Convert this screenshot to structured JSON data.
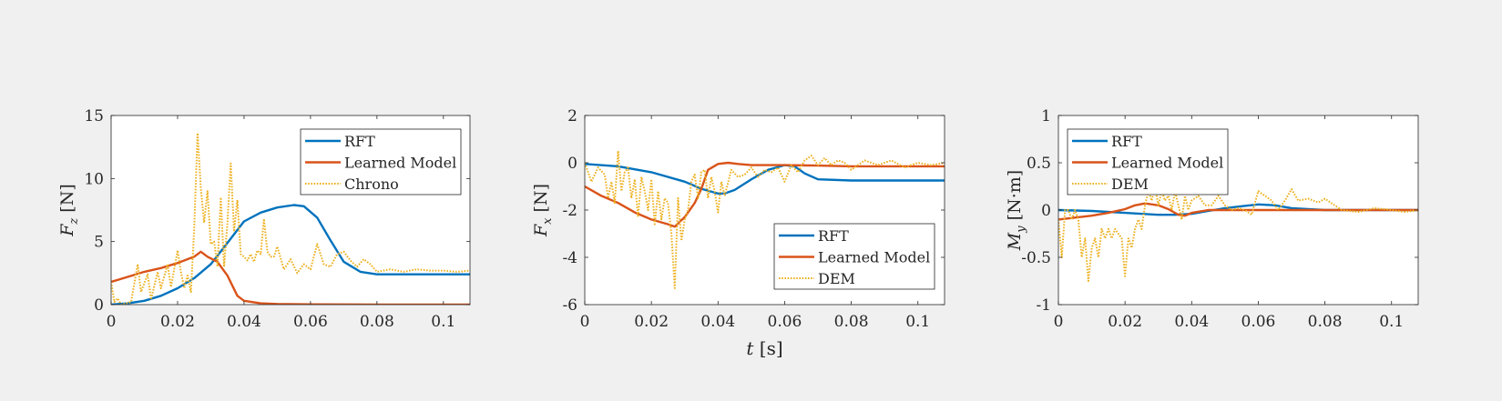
{
  "chart_data": [
    {
      "type": "line",
      "ylabel": "F_z [N]",
      "ylabel_parts": {
        "sym": "F",
        "sub": "z",
        "unit": " [N]"
      },
      "xlabel": "",
      "xlim": [
        0,
        0.108
      ],
      "ylim": [
        0,
        15
      ],
      "xticks": [
        0,
        0.02,
        0.04,
        0.06,
        0.08,
        0.1
      ],
      "xtick_labels": [
        "0",
        "0.02",
        "0.04",
        "0.06",
        "0.08",
        "0.1"
      ],
      "yticks": [
        0,
        5,
        10,
        15
      ],
      "ytick_labels": [
        "0",
        "5",
        "10",
        "15"
      ],
      "legend": "top-right",
      "series": [
        {
          "name": "RFT",
          "color": "#0072bd",
          "style": "solid",
          "x": [
            0,
            0.005,
            0.01,
            0.015,
            0.02,
            0.025,
            0.03,
            0.035,
            0.04,
            0.045,
            0.05,
            0.055,
            0.058,
            0.062,
            0.066,
            0.07,
            0.075,
            0.08,
            0.09,
            0.1,
            0.108
          ],
          "y": [
            0,
            0.1,
            0.3,
            0.7,
            1.3,
            2.1,
            3.2,
            4.9,
            6.6,
            7.3,
            7.7,
            7.9,
            7.8,
            6.9,
            5.1,
            3.4,
            2.6,
            2.4,
            2.4,
            2.4,
            2.4
          ]
        },
        {
          "name": "Learned Model",
          "color": "#d95319",
          "style": "solid",
          "x": [
            0,
            0.005,
            0.01,
            0.015,
            0.02,
            0.025,
            0.027,
            0.029,
            0.032,
            0.035,
            0.038,
            0.04,
            0.045,
            0.05,
            0.06,
            0.08,
            0.1,
            0.108
          ],
          "y": [
            1.8,
            2.2,
            2.6,
            2.9,
            3.3,
            3.8,
            4.2,
            3.8,
            3.4,
            2.3,
            0.7,
            0.3,
            0.1,
            0.05,
            0.02,
            0.01,
            0,
            0
          ],
          "y_label_note": ""
        },
        {
          "name": "Chrono",
          "color": "#edb120",
          "style": "dotted",
          "x": [
            0,
            0.001,
            0.002,
            0.003,
            0.006,
            0.008,
            0.009,
            0.011,
            0.012,
            0.014,
            0.015,
            0.017,
            0.018,
            0.02,
            0.021,
            0.022,
            0.023,
            0.024,
            0.025,
            0.026,
            0.027,
            0.028,
            0.029,
            0.03,
            0.031,
            0.032,
            0.033,
            0.034,
            0.035,
            0.036,
            0.037,
            0.038,
            0.039,
            0.04,
            0.041,
            0.042,
            0.043,
            0.044,
            0.045,
            0.046,
            0.047,
            0.048,
            0.049,
            0.05,
            0.052,
            0.054,
            0.056,
            0.058,
            0.06,
            0.062,
            0.064,
            0.066,
            0.068,
            0.07,
            0.072,
            0.074,
            0.076,
            0.078,
            0.08,
            0.084,
            0.088,
            0.092,
            0.096,
            0.1,
            0.104,
            0.108
          ],
          "y": [
            1.8,
            0.2,
            0.5,
            0,
            0.2,
            3.2,
            1.0,
            2.4,
            0.4,
            2.6,
            1.3,
            3.2,
            1.4,
            4.3,
            2.6,
            1.3,
            2.3,
            1.0,
            6.0,
            13.6,
            9.2,
            6.5,
            9.0,
            4.8,
            5.0,
            3.0,
            8.5,
            3.0,
            6.5,
            11.2,
            5.8,
            8.3,
            4.0,
            3.8,
            3.5,
            4.0,
            3.4,
            4.3,
            4.0,
            6.8,
            4.2,
            3.8,
            3.8,
            4.6,
            2.8,
            3.6,
            2.5,
            3.2,
            2.8,
            4.8,
            3.2,
            3.0,
            4.0,
            4.2,
            3.5,
            3.0,
            3.6,
            3.2,
            2.6,
            2.8,
            2.6,
            2.8,
            2.7,
            2.7,
            2.6,
            2.7
          ]
        }
      ]
    },
    {
      "type": "line",
      "ylabel": "F_x [N]",
      "ylabel_parts": {
        "sym": "F",
        "sub": "x",
        "unit": " [N]"
      },
      "xlabel": "t [s]",
      "xlim": [
        0,
        0.108
      ],
      "ylim": [
        -6,
        2
      ],
      "xticks": [
        0,
        0.02,
        0.04,
        0.06,
        0.08,
        0.1
      ],
      "xtick_labels": [
        "0",
        "0.02",
        "0.04",
        "0.06",
        "0.08",
        "0.1"
      ],
      "yticks": [
        -6,
        -4,
        -2,
        0,
        2
      ],
      "ytick_labels": [
        "-6",
        "-4",
        "-2",
        "0",
        "2"
      ],
      "legend": "bottom-right",
      "series": [
        {
          "name": "RFT",
          "color": "#0072bd",
          "style": "solid",
          "x": [
            0,
            0.01,
            0.02,
            0.03,
            0.035,
            0.04,
            0.042,
            0.045,
            0.05,
            0.055,
            0.06,
            0.063,
            0.066,
            0.07,
            0.08,
            0.09,
            0.1,
            0.108
          ],
          "y": [
            -0.05,
            -0.15,
            -0.4,
            -0.8,
            -1.1,
            -1.3,
            -1.3,
            -1.15,
            -0.7,
            -0.3,
            -0.1,
            -0.15,
            -0.45,
            -0.7,
            -0.75,
            -0.75,
            -0.75,
            -0.75
          ]
        },
        {
          "name": "Learned Model",
          "color": "#d95319",
          "style": "solid",
          "x": [
            0,
            0.005,
            0.01,
            0.015,
            0.02,
            0.025,
            0.027,
            0.03,
            0.033,
            0.035,
            0.037,
            0.04,
            0.043,
            0.046,
            0.05,
            0.06,
            0.07,
            0.08,
            0.09,
            0.1,
            0.108
          ],
          "y": [
            -1.0,
            -1.4,
            -1.7,
            -2.1,
            -2.4,
            -2.6,
            -2.7,
            -2.3,
            -1.7,
            -1.1,
            -0.3,
            -0.05,
            0.0,
            -0.05,
            -0.1,
            -0.1,
            -0.12,
            -0.15,
            -0.15,
            -0.15,
            -0.15
          ]
        },
        {
          "name": "DEM",
          "color": "#edb120",
          "style": "dotted",
          "x": [
            0,
            0.002,
            0.004,
            0.006,
            0.007,
            0.008,
            0.009,
            0.01,
            0.011,
            0.012,
            0.013,
            0.014,
            0.015,
            0.016,
            0.017,
            0.018,
            0.019,
            0.02,
            0.021,
            0.022,
            0.023,
            0.024,
            0.025,
            0.026,
            0.027,
            0.028,
            0.029,
            0.03,
            0.031,
            0.032,
            0.033,
            0.034,
            0.035,
            0.036,
            0.037,
            0.038,
            0.039,
            0.04,
            0.041,
            0.042,
            0.044,
            0.046,
            0.048,
            0.05,
            0.052,
            0.054,
            0.056,
            0.058,
            0.06,
            0.062,
            0.064,
            0.066,
            0.068,
            0.07,
            0.072,
            0.074,
            0.076,
            0.078,
            0.08,
            0.084,
            0.088,
            0.092,
            0.096,
            0.1,
            0.104,
            0.108
          ],
          "y": [
            0,
            -0.8,
            -0.2,
            -0.5,
            -1.5,
            -0.8,
            -1.7,
            0.5,
            -1.2,
            -0.4,
            -0.2,
            -1.5,
            -0.7,
            -2.3,
            -0.6,
            -1.2,
            -2.0,
            -0.7,
            -2.6,
            -1.2,
            -2.4,
            -1.5,
            -1.7,
            -3.0,
            -5.3,
            -1.5,
            -3.3,
            -2.4,
            -2.0,
            -0.8,
            -0.5,
            -1.5,
            -0.4,
            -0.3,
            -1.5,
            -0.6,
            -1.2,
            -2.1,
            -0.8,
            -1.4,
            -0.3,
            -0.6,
            -0.5,
            -0.2,
            -0.6,
            -0.3,
            -0.4,
            -0.2,
            -0.8,
            -0.1,
            -0.4,
            0.1,
            0.3,
            -0.1,
            0.2,
            -0.1,
            0.1,
            0.0,
            -0.3,
            0.1,
            -0.1,
            0.1,
            -0.2,
            0.0,
            -0.1,
            0.0
          ]
        }
      ]
    },
    {
      "type": "line",
      "ylabel": "M_y [N·m]",
      "ylabel_parts": {
        "sym": "M",
        "sub": "y",
        "unit": " [N·m]"
      },
      "xlabel": "",
      "xlim": [
        0,
        0.108
      ],
      "ylim": [
        -1,
        1
      ],
      "xticks": [
        0,
        0.02,
        0.04,
        0.06,
        0.08,
        0.1
      ],
      "xtick_labels": [
        "0",
        "0.02",
        "0.04",
        "0.06",
        "0.08",
        "0.1"
      ],
      "yticks": [
        -1,
        -0.5,
        0,
        0.5,
        1
      ],
      "ytick_labels": [
        "-1",
        "-0.5",
        "0",
        "0.5",
        "1"
      ],
      "legend": "top-left",
      "series": [
        {
          "name": "RFT",
          "color": "#0072bd",
          "style": "solid",
          "x": [
            0,
            0.01,
            0.02,
            0.03,
            0.035,
            0.04,
            0.045,
            0.05,
            0.055,
            0.06,
            0.065,
            0.07,
            0.08,
            0.09,
            0.1,
            0.108
          ],
          "y": [
            0,
            -0.01,
            -0.03,
            -0.05,
            -0.05,
            -0.04,
            -0.01,
            0.02,
            0.04,
            0.06,
            0.05,
            0.02,
            0,
            0,
            0,
            0
          ]
        },
        {
          "name": "Learned Model",
          "color": "#d95319",
          "style": "solid",
          "x": [
            0,
            0.005,
            0.01,
            0.015,
            0.02,
            0.023,
            0.026,
            0.03,
            0.033,
            0.036,
            0.038,
            0.04,
            0.045,
            0.05,
            0.06,
            0.08,
            0.1,
            0.108
          ],
          "y": [
            -0.1,
            -0.08,
            -0.06,
            -0.03,
            0.01,
            0.05,
            0.07,
            0.05,
            0.01,
            -0.05,
            -0.06,
            -0.03,
            0.0,
            0.0,
            0.0,
            0.0,
            0.0,
            0.0
          ]
        },
        {
          "name": "DEM",
          "color": "#edb120",
          "style": "dotted",
          "x": [
            0,
            0.001,
            0.002,
            0.003,
            0.004,
            0.005,
            0.006,
            0.007,
            0.008,
            0.009,
            0.01,
            0.011,
            0.012,
            0.013,
            0.014,
            0.015,
            0.016,
            0.017,
            0.018,
            0.019,
            0.02,
            0.021,
            0.022,
            0.023,
            0.024,
            0.025,
            0.026,
            0.027,
            0.028,
            0.029,
            0.03,
            0.031,
            0.032,
            0.033,
            0.034,
            0.035,
            0.036,
            0.037,
            0.038,
            0.039,
            0.04,
            0.042,
            0.044,
            0.046,
            0.048,
            0.05,
            0.052,
            0.054,
            0.056,
            0.058,
            0.06,
            0.062,
            0.064,
            0.066,
            0.068,
            0.07,
            0.072,
            0.075,
            0.078,
            0.08,
            0.085,
            0.09,
            0.095,
            0.1,
            0.104,
            0.108
          ],
          "y": [
            -0.1,
            -0.5,
            0.0,
            0.0,
            -0.1,
            0.0,
            -0.1,
            -0.5,
            -0.3,
            -0.75,
            -0.4,
            -0.3,
            -0.5,
            -0.2,
            -0.3,
            -0.2,
            -0.3,
            -0.2,
            -0.25,
            -0.3,
            -0.7,
            -0.3,
            -0.4,
            -0.2,
            -0.1,
            -0.2,
            0.05,
            0.2,
            0.1,
            0.25,
            0.05,
            0.2,
            0.1,
            0.15,
            0.0,
            0.2,
            0.05,
            -0.1,
            0.15,
            0.0,
            0.1,
            0.15,
            0.05,
            0.05,
            0.15,
            0.05,
            0.0,
            0.02,
            0.0,
            -0.05,
            0.2,
            0.15,
            0.1,
            0.0,
            0.1,
            0.22,
            0.1,
            0.12,
            0.08,
            0.12,
            0.0,
            -0.02,
            0.02,
            0.0,
            -0.02,
            0.0
          ]
        }
      ]
    }
  ]
}
